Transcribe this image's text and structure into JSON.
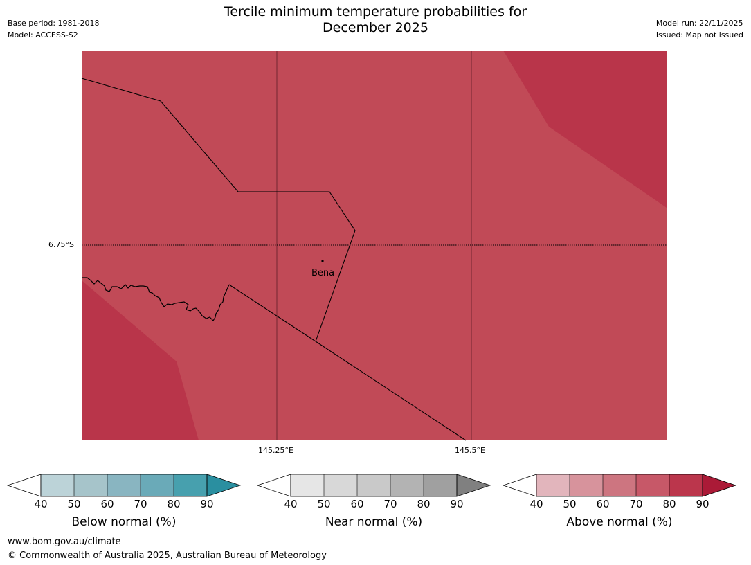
{
  "header": {
    "title_line1": "Tercile minimum temperature probabilities for",
    "title_line2": "December 2025",
    "base_period": "Base period: 1981-2018",
    "model": "Model: ACCESS-S2",
    "model_run": "Model run: 22/11/2025",
    "issued": "Issued: Map not issued"
  },
  "map": {
    "latitude_label": "6.75°S",
    "longitude_labels": [
      "145.25°E",
      "145.5°E"
    ],
    "place_name": "Bena",
    "colors": {
      "main_fill": "#c14a57",
      "dark_fill": "#b9354a",
      "border": "#000000"
    }
  },
  "legends": {
    "below": {
      "title": "Below normal (%)",
      "ticks": [
        "40",
        "50",
        "60",
        "70",
        "80",
        "90"
      ],
      "colors": [
        "#ffffff",
        "#bcd3d8",
        "#a6c4ca",
        "#89b5c1",
        "#6aaab8",
        "#47a0ae",
        "#2a8fa0"
      ]
    },
    "near": {
      "title": "Near normal (%)",
      "ticks": [
        "40",
        "50",
        "60",
        "70",
        "80",
        "90"
      ],
      "colors": [
        "#ffffff",
        "#e6e6e6",
        "#d8d8d8",
        "#c9c9c9",
        "#b3b3b3",
        "#a0a0a0",
        "#808080"
      ]
    },
    "above": {
      "title": "Above normal (%)",
      "ticks": [
        "40",
        "50",
        "60",
        "70",
        "80",
        "90"
      ],
      "colors": [
        "#ffffff",
        "#e2b5bc",
        "#d7939c",
        "#cd7580",
        "#c75868",
        "#bb364c",
        "#ab1a37"
      ]
    }
  },
  "footer": {
    "url": "www.bom.gov.au/climate",
    "copyright": "© Commonwealth of Australia 2025, Australian Bureau of Meteorology"
  }
}
